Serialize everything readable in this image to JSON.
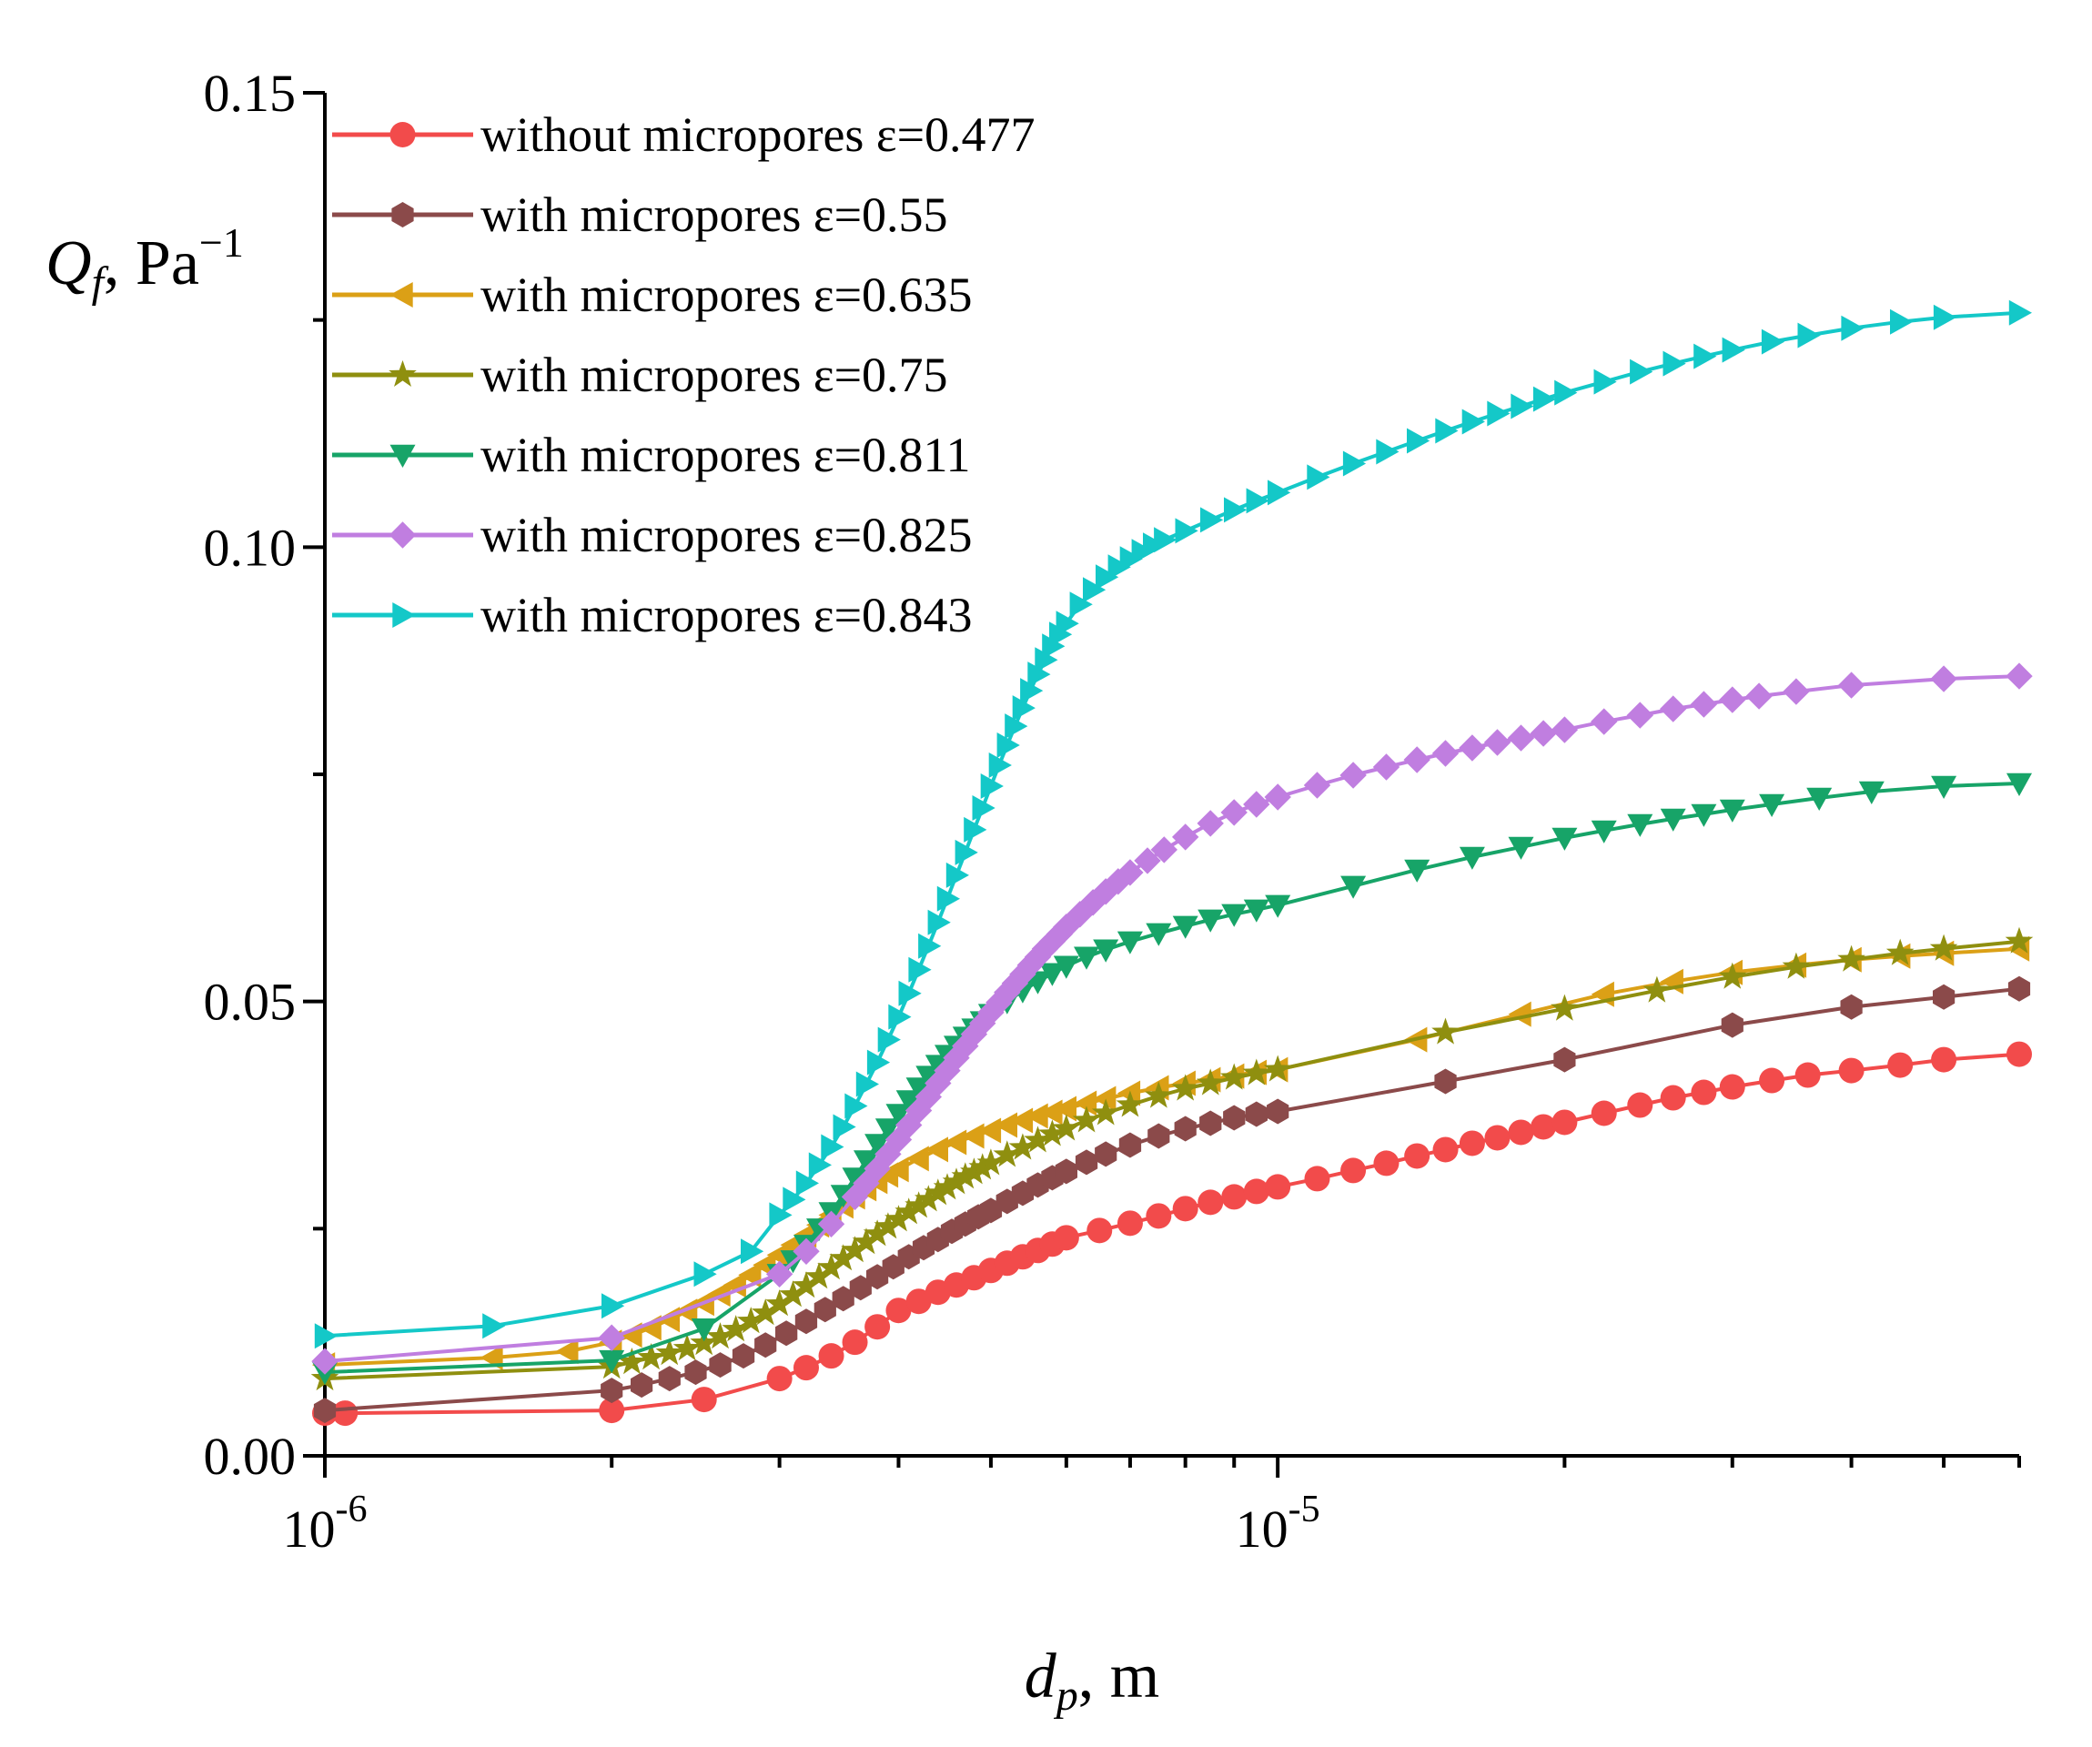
{
  "chart_data": {
    "type": "line",
    "title": "",
    "xscale": "log",
    "xlim": [
      1e-06,
      6e-05
    ],
    "ylim": [
      0,
      0.15
    ],
    "x_ticks": [
      {
        "value": 1e-06,
        "base": "10",
        "exp": "-6"
      },
      {
        "value": 1e-05,
        "base": "10",
        "exp": "-5"
      }
    ],
    "y_ticks": [
      {
        "value": 0.0,
        "label": "0.00"
      },
      {
        "value": 0.05,
        "label": "0.05"
      },
      {
        "value": 0.1,
        "label": "0.10"
      },
      {
        "value": 0.15,
        "label": "0.15"
      }
    ],
    "xlabel": {
      "symbol": "d",
      "sub": "p",
      "rest": ", m"
    },
    "ylabel": {
      "symbol": "Q",
      "sub": "f",
      "rest": ", Pa",
      "sup": "−1"
    },
    "legend_position": "top-left",
    "series": [
      {
        "name": "without micropores ε=0.477",
        "color": "#f24b4b",
        "marker": "circle",
        "x": [
          1e-06,
          1.05e-06,
          2e-06,
          2.5e-06,
          3e-06,
          3.2e-06,
          3.4e-06,
          3.6e-06,
          3.8e-06,
          4e-06,
          4.2e-06,
          4.4e-06,
          4.6e-06,
          4.8e-06,
          5e-06,
          5.2e-06,
          5.4e-06,
          5.6e-06,
          5.8e-06,
          6e-06,
          6.5e-06,
          7e-06,
          7.5e-06,
          8e-06,
          8.5e-06,
          9e-06,
          9.5e-06,
          1e-05,
          1.1e-05,
          1.2e-05,
          1.3e-05,
          1.4e-05,
          1.5e-05,
          1.6e-05,
          1.7e-05,
          1.8e-05,
          1.9e-05,
          2e-05,
          2.2e-05,
          2.4e-05,
          2.6e-05,
          2.8e-05,
          3e-05,
          3.3e-05,
          3.6e-05,
          4e-05,
          4.5e-05,
          5e-05,
          6e-05
        ],
        "y": [
          0.0047,
          0.0047,
          0.005,
          0.0062,
          0.0085,
          0.0097,
          0.011,
          0.0125,
          0.0142,
          0.016,
          0.017,
          0.018,
          0.0188,
          0.0196,
          0.0204,
          0.0212,
          0.0219,
          0.0226,
          0.0233,
          0.024,
          0.0248,
          0.0256,
          0.0264,
          0.0272,
          0.0279,
          0.0285,
          0.0291,
          0.0296,
          0.0305,
          0.0314,
          0.0322,
          0.033,
          0.0337,
          0.0344,
          0.035,
          0.0356,
          0.0362,
          0.0367,
          0.0377,
          0.0386,
          0.0394,
          0.04,
          0.0406,
          0.0413,
          0.0419,
          0.0424,
          0.043,
          0.0436,
          0.0442
        ]
      },
      {
        "name": "with micropores ε=0.55",
        "color": "#8b4a4a",
        "marker": "hexagon",
        "x": [
          1e-06,
          2e-06,
          2.15e-06,
          2.3e-06,
          2.45e-06,
          2.6e-06,
          2.75e-06,
          2.9e-06,
          3.05e-06,
          3.2e-06,
          3.35e-06,
          3.5e-06,
          3.65e-06,
          3.8e-06,
          3.95e-06,
          4.1e-06,
          4.25e-06,
          4.4e-06,
          4.55e-06,
          4.7e-06,
          4.85e-06,
          5e-06,
          5.2e-06,
          5.4e-06,
          5.6e-06,
          5.8e-06,
          6e-06,
          6.3e-06,
          6.6e-06,
          7e-06,
          7.5e-06,
          8e-06,
          8.5e-06,
          9e-06,
          9.5e-06,
          1e-05,
          1.5e-05,
          2e-05,
          3e-05,
          4e-05,
          5e-05,
          6e-05
        ],
        "y": [
          0.005,
          0.0072,
          0.0078,
          0.0085,
          0.0092,
          0.01,
          0.011,
          0.0122,
          0.0135,
          0.0148,
          0.0161,
          0.0173,
          0.0185,
          0.0197,
          0.0208,
          0.0219,
          0.0229,
          0.0238,
          0.0247,
          0.0255,
          0.0263,
          0.027,
          0.028,
          0.0289,
          0.0298,
          0.0306,
          0.0313,
          0.0323,
          0.0332,
          0.0342,
          0.0352,
          0.036,
          0.0366,
          0.0372,
          0.0376,
          0.0379,
          0.0412,
          0.0436,
          0.0474,
          0.0494,
          0.0505,
          0.0514
        ]
      },
      {
        "name": "with micropores ε=0.635",
        "color": "#dba016",
        "marker": "triangle-left",
        "x": [
          1e-06,
          1.5e-06,
          1.8e-06,
          2e-06,
          2.1e-06,
          2.2e-06,
          2.3e-06,
          2.4e-06,
          2.5e-06,
          2.6e-06,
          2.7e-06,
          2.8e-06,
          2.9e-06,
          3e-06,
          3.1e-06,
          3.2e-06,
          3.3e-06,
          3.4e-06,
          3.5e-06,
          3.6e-06,
          3.7e-06,
          3.8e-06,
          3.9e-06,
          4e-06,
          4.2e-06,
          4.4e-06,
          4.6e-06,
          4.8e-06,
          5e-06,
          5.2e-06,
          5.4e-06,
          5.6e-06,
          5.8e-06,
          6e-06,
          6.3e-06,
          6.6e-06,
          7e-06,
          7.5e-06,
          8e-06,
          8.5e-06,
          9e-06,
          9.5e-06,
          1e-05,
          1.4e-05,
          1.8e-05,
          2.2e-05,
          2.6e-05,
          3e-05,
          3.5e-05,
          4e-05,
          4.5e-05,
          5e-05,
          6e-05
        ],
        "y": [
          0.01,
          0.0108,
          0.0115,
          0.0125,
          0.0133,
          0.0141,
          0.015,
          0.0159,
          0.0168,
          0.0178,
          0.0188,
          0.0199,
          0.021,
          0.0221,
          0.0232,
          0.0243,
          0.0254,
          0.0265,
          0.0275,
          0.0285,
          0.0294,
          0.0302,
          0.0309,
          0.0315,
          0.0327,
          0.0337,
          0.0345,
          0.0352,
          0.0358,
          0.0364,
          0.0369,
          0.0374,
          0.0378,
          0.0382,
          0.0388,
          0.0393,
          0.0399,
          0.0405,
          0.041,
          0.0414,
          0.0418,
          0.0422,
          0.0425,
          0.0458,
          0.0486,
          0.0508,
          0.0522,
          0.0532,
          0.054,
          0.0546,
          0.055,
          0.0553,
          0.0558
        ]
      },
      {
        "name": "with micropores ε=0.75",
        "color": "#8f8f0f",
        "marker": "star",
        "x": [
          1e-06,
          2e-06,
          2.1e-06,
          2.2e-06,
          2.3e-06,
          2.4e-06,
          2.5e-06,
          2.6e-06,
          2.7e-06,
          2.8e-06,
          2.9e-06,
          3e-06,
          3.1e-06,
          3.2e-06,
          3.3e-06,
          3.4e-06,
          3.5e-06,
          3.6e-06,
          3.7e-06,
          3.8e-06,
          3.9e-06,
          4e-06,
          4.1e-06,
          4.2e-06,
          4.3e-06,
          4.4e-06,
          4.5e-06,
          4.6e-06,
          4.7e-06,
          4.8e-06,
          4.9e-06,
          5e-06,
          5.2e-06,
          5.4e-06,
          5.6e-06,
          5.8e-06,
          6e-06,
          6.3e-06,
          6.6e-06,
          7e-06,
          7.5e-06,
          8e-06,
          8.5e-06,
          9e-06,
          9.5e-06,
          1e-05,
          1.5e-05,
          2e-05,
          2.5e-05,
          3e-05,
          3.5e-05,
          4e-05,
          4.5e-05,
          5e-05,
          6e-05
        ],
        "y": [
          0.0085,
          0.0098,
          0.0103,
          0.0108,
          0.0113,
          0.0118,
          0.0124,
          0.0131,
          0.0139,
          0.0148,
          0.0157,
          0.0167,
          0.0177,
          0.0187,
          0.0197,
          0.0207,
          0.0217,
          0.0226,
          0.0235,
          0.0244,
          0.0252,
          0.026,
          0.0268,
          0.0275,
          0.0282,
          0.0289,
          0.0295,
          0.0301,
          0.0307,
          0.0312,
          0.0317,
          0.0322,
          0.0331,
          0.0339,
          0.0347,
          0.0354,
          0.036,
          0.0369,
          0.0377,
          0.0386,
          0.0396,
          0.0404,
          0.041,
          0.0416,
          0.0421,
          0.0425,
          0.0466,
          0.0492,
          0.0512,
          0.0527,
          0.0538,
          0.0546,
          0.0553,
          0.0558,
          0.0566
        ]
      },
      {
        "name": "with micropores ε=0.811",
        "color": "#17a468",
        "marker": "triangle-down",
        "x": [
          1e-06,
          2e-06,
          2.5e-06,
          3e-06,
          3.1e-06,
          3.2e-06,
          3.3e-06,
          3.4e-06,
          3.5e-06,
          3.6e-06,
          3.7e-06,
          3.8e-06,
          3.9e-06,
          4e-06,
          4.1e-06,
          4.2e-06,
          4.3e-06,
          4.4e-06,
          4.5e-06,
          4.6e-06,
          4.7e-06,
          4.8e-06,
          4.9e-06,
          5e-06,
          5.2e-06,
          5.4e-06,
          5.6e-06,
          5.8e-06,
          6e-06,
          6.3e-06,
          6.6e-06,
          7e-06,
          7.5e-06,
          8e-06,
          8.5e-06,
          9e-06,
          9.5e-06,
          1e-05,
          1.2e-05,
          1.4e-05,
          1.6e-05,
          1.8e-05,
          2e-05,
          2.2e-05,
          2.4e-05,
          2.6e-05,
          2.8e-05,
          3e-05,
          3.3e-05,
          3.7e-05,
          4.2e-05,
          5e-05,
          6e-05
        ],
        "y": [
          0.0092,
          0.0105,
          0.014,
          0.02,
          0.0215,
          0.0232,
          0.025,
          0.0268,
          0.0287,
          0.0306,
          0.0325,
          0.0343,
          0.036,
          0.0376,
          0.0391,
          0.0405,
          0.0418,
          0.043,
          0.0441,
          0.0451,
          0.0461,
          0.047,
          0.0478,
          0.0486,
          0.05,
          0.0512,
          0.0522,
          0.0531,
          0.0539,
          0.0549,
          0.0557,
          0.0566,
          0.0575,
          0.0583,
          0.059,
          0.0596,
          0.0601,
          0.0606,
          0.0627,
          0.0645,
          0.0659,
          0.067,
          0.068,
          0.0688,
          0.0695,
          0.0701,
          0.0706,
          0.0711,
          0.0717,
          0.0724,
          0.0731,
          0.0737,
          0.074
        ]
      },
      {
        "name": "with micropores ε=0.825",
        "color": "#c07ee0",
        "marker": "diamond",
        "x": [
          1e-06,
          2e-06,
          3e-06,
          3.2e-06,
          3.4e-06,
          3.6e-06,
          3.7e-06,
          3.8e-06,
          3.9e-06,
          4e-06,
          4.1e-06,
          4.2e-06,
          4.3e-06,
          4.4e-06,
          4.5e-06,
          4.6e-06,
          4.7e-06,
          4.8e-06,
          4.9e-06,
          5e-06,
          5.1e-06,
          5.2e-06,
          5.3e-06,
          5.4e-06,
          5.5e-06,
          5.6e-06,
          5.7e-06,
          5.8e-06,
          5.9e-06,
          6e-06,
          6.2e-06,
          6.4e-06,
          6.6e-06,
          6.8e-06,
          7e-06,
          7.3e-06,
          7.6e-06,
          8e-06,
          8.5e-06,
          9e-06,
          9.5e-06,
          1e-05,
          1.1e-05,
          1.2e-05,
          1.3e-05,
          1.4e-05,
          1.5e-05,
          1.6e-05,
          1.7e-05,
          1.8e-05,
          1.9e-05,
          2e-05,
          2.2e-05,
          2.4e-05,
          2.6e-05,
          2.8e-05,
          3e-05,
          3.2e-05,
          3.5e-05,
          4e-05,
          5e-05,
          6e-05
        ],
        "y": [
          0.0104,
          0.013,
          0.02,
          0.0225,
          0.0255,
          0.0285,
          0.03,
          0.0316,
          0.0332,
          0.0348,
          0.0364,
          0.038,
          0.0395,
          0.041,
          0.0424,
          0.0438,
          0.0451,
          0.0464,
          0.0476,
          0.0488,
          0.0499,
          0.051,
          0.052,
          0.053,
          0.054,
          0.0549,
          0.0558,
          0.0566,
          0.0574,
          0.0582,
          0.0596,
          0.0609,
          0.0621,
          0.0632,
          0.0642,
          0.0655,
          0.0667,
          0.0681,
          0.0696,
          0.0708,
          0.0717,
          0.0725,
          0.0738,
          0.0749,
          0.0758,
          0.0766,
          0.0773,
          0.0779,
          0.0785,
          0.079,
          0.0795,
          0.0799,
          0.0808,
          0.0815,
          0.0822,
          0.0827,
          0.0832,
          0.0836,
          0.0841,
          0.0848,
          0.0855,
          0.0858
        ]
      },
      {
        "name": "with micropores ε=0.843",
        "color": "#14c8c8",
        "marker": "triangle-right",
        "x": [
          1e-06,
          1.5e-06,
          2e-06,
          2.5e-06,
          2.8e-06,
          3e-06,
          3.1e-06,
          3.2e-06,
          3.3e-06,
          3.4e-06,
          3.5e-06,
          3.6e-06,
          3.7e-06,
          3.8e-06,
          3.9e-06,
          4e-06,
          4.1e-06,
          4.2e-06,
          4.3e-06,
          4.4e-06,
          4.5e-06,
          4.6e-06,
          4.7e-06,
          4.8e-06,
          4.9e-06,
          5e-06,
          5.1e-06,
          5.2e-06,
          5.3e-06,
          5.4e-06,
          5.5e-06,
          5.6e-06,
          5.7e-06,
          5.8e-06,
          5.9e-06,
          6e-06,
          6.2e-06,
          6.4e-06,
          6.6e-06,
          6.8e-06,
          7e-06,
          7.2e-06,
          7.4e-06,
          7.6e-06,
          8e-06,
          8.5e-06,
          9e-06,
          9.5e-06,
          1e-05,
          1.1e-05,
          1.2e-05,
          1.3e-05,
          1.4e-05,
          1.5e-05,
          1.6e-05,
          1.7e-05,
          1.8e-05,
          1.9e-05,
          2e-05,
          2.2e-05,
          2.4e-05,
          2.6e-05,
          2.8e-05,
          3e-05,
          3.3e-05,
          3.6e-05,
          4e-05,
          4.5e-05,
          5e-05,
          6e-05
        ],
        "y": [
          0.0132,
          0.0143,
          0.0165,
          0.02,
          0.0225,
          0.0265,
          0.0282,
          0.03,
          0.032,
          0.034,
          0.0362,
          0.0385,
          0.0409,
          0.0433,
          0.0458,
          0.0483,
          0.0509,
          0.0535,
          0.0561,
          0.0587,
          0.0613,
          0.0639,
          0.0664,
          0.0689,
          0.0713,
          0.0737,
          0.076,
          0.0782,
          0.0803,
          0.0823,
          0.0842,
          0.086,
          0.0876,
          0.0891,
          0.0904,
          0.0916,
          0.0937,
          0.0953,
          0.0967,
          0.0978,
          0.0987,
          0.0995,
          0.1002,
          0.1008,
          0.1018,
          0.103,
          0.1041,
          0.1051,
          0.106,
          0.1077,
          0.1092,
          0.1105,
          0.1117,
          0.1128,
          0.1138,
          0.1147,
          0.1155,
          0.1163,
          0.117,
          0.1182,
          0.1193,
          0.1202,
          0.121,
          0.1217,
          0.1226,
          0.1233,
          0.1241,
          0.1248,
          0.1253,
          0.1258
        ]
      }
    ]
  }
}
